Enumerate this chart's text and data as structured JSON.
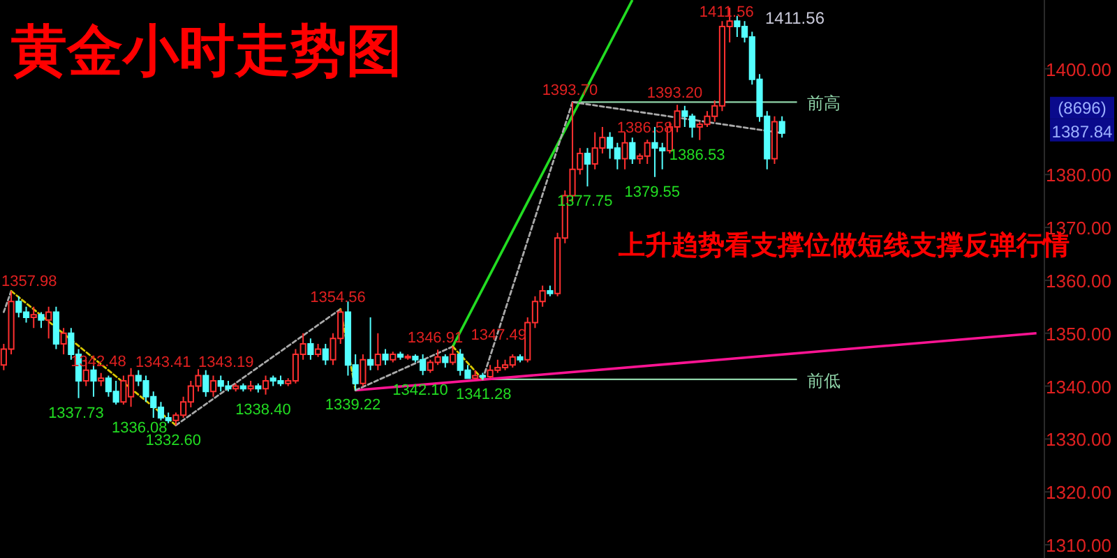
{
  "chart_data": {
    "type": "candlestick",
    "title": "黄金小时走势图",
    "categories": [
      null,
      null,
      null,
      null,
      null,
      null,
      null,
      null,
      null,
      null,
      null,
      null,
      null,
      null,
      null,
      null,
      null,
      null,
      null,
      null,
      null,
      null,
      null,
      null,
      null,
      null,
      null,
      null,
      null,
      null,
      null,
      null,
      null,
      null,
      null,
      null,
      null,
      null,
      null,
      null,
      null,
      null,
      null,
      null,
      null,
      null,
      null,
      null,
      null,
      null,
      null,
      null,
      null,
      null,
      null,
      null,
      null,
      null,
      null,
      null,
      null,
      null,
      null,
      null,
      null,
      null,
      null,
      null,
      null,
      null,
      null,
      null,
      null,
      null,
      null,
      null,
      null,
      null,
      null,
      null,
      null,
      null,
      null,
      null,
      null,
      null,
      null,
      null,
      null,
      null,
      null,
      null,
      null,
      null,
      null,
      null,
      null,
      null,
      null,
      null,
      null,
      null,
      null,
      null,
      null,
      null,
      null,
      null,
      null,
      null,
      null,
      null,
      null,
      null,
      null,
      null,
      null,
      null,
      null,
      null,
      null,
      null,
      null,
      null,
      null,
      null,
      null,
      null,
      null,
      null,
      null,
      null,
      null,
      null,
      null,
      null,
      null,
      null,
      null
    ],
    "ohlc": [
      [
        1344,
        1348,
        1343,
        1347
      ],
      [
        1347,
        1357.98,
        1346,
        1356
      ],
      [
        1356,
        1357,
        1353,
        1354
      ],
      [
        1354,
        1355,
        1352,
        1353
      ],
      [
        1353,
        1355,
        1351,
        1353.5
      ],
      [
        1353.5,
        1354,
        1351,
        1352.5
      ],
      [
        1352.5,
        1355,
        1349,
        1354
      ],
      [
        1354,
        1355,
        1347,
        1348
      ],
      [
        1348,
        1351,
        1346,
        1350
      ],
      [
        1350,
        1351,
        1345,
        1346
      ],
      [
        1346,
        1347,
        1337.73,
        1341
      ],
      [
        1341,
        1345,
        1340,
        1343
      ],
      [
        1343,
        1344,
        1338,
        1341
      ],
      [
        1341,
        1342.48,
        1340,
        1341.5
      ],
      [
        1341.5,
        1342,
        1338,
        1339
      ],
      [
        1339,
        1341,
        1336.5,
        1337
      ],
      [
        1337,
        1342,
        1336.5,
        1341
      ],
      [
        1338,
        1343.41,
        1336.08,
        1342
      ],
      [
        1342,
        1343,
        1340,
        1341
      ],
      [
        1341,
        1342,
        1337,
        1338
      ],
      [
        1338,
        1339,
        1334,
        1336
      ],
      [
        1336,
        1337,
        1333.5,
        1334
      ],
      [
        1334,
        1335,
        1333,
        1333.5
      ],
      [
        1333.5,
        1335,
        1332.6,
        1334.5
      ],
      [
        1334.5,
        1338,
        1334,
        1337
      ],
      [
        1337,
        1341,
        1336,
        1340
      ],
      [
        1340,
        1343.19,
        1339,
        1342
      ],
      [
        1342,
        1343,
        1338,
        1339
      ],
      [
        1339,
        1342,
        1338,
        1341
      ],
      [
        1341,
        1342,
        1339,
        1340
      ],
      [
        1340,
        1341,
        1339,
        1339.5
      ],
      [
        1339.5,
        1340.5,
        1339,
        1340
      ],
      [
        1340,
        1340.5,
        1339,
        1339.5
      ],
      [
        1339.5,
        1341,
        1339,
        1340
      ],
      [
        1340,
        1340.5,
        1338.8,
        1339.5
      ],
      [
        1339.5,
        1342,
        1338.4,
        1341
      ],
      [
        1341.5,
        1342,
        1340,
        1341
      ],
      [
        1341,
        1342,
        1340,
        1340.5
      ],
      [
        1340.5,
        1341.5,
        1340,
        1341
      ],
      [
        1341,
        1347,
        1340.5,
        1346
      ],
      [
        1346,
        1350,
        1345,
        1348
      ],
      [
        1348,
        1349,
        1345,
        1346
      ],
      [
        1346,
        1348,
        1345.5,
        1347
      ],
      [
        1347,
        1348,
        1344,
        1345
      ],
      [
        1345,
        1350,
        1344,
        1349
      ],
      [
        1349,
        1354.56,
        1348,
        1354
      ],
      [
        1354,
        1356,
        1342,
        1344
      ],
      [
        1344,
        1346,
        1339.22,
        1340.5
      ],
      [
        1340.5,
        1346,
        1340,
        1345
      ],
      [
        1345,
        1353,
        1343,
        1344
      ],
      [
        1344,
        1350,
        1343,
        1346
      ],
      [
        1346,
        1347,
        1344,
        1345
      ],
      [
        1345,
        1346.5,
        1344.5,
        1346
      ],
      [
        1346,
        1346.5,
        1345,
        1345.5
      ],
      [
        1345.5,
        1346,
        1345,
        1345.6
      ],
      [
        1345.6,
        1346,
        1344.5,
        1345
      ],
      [
        1345,
        1346,
        1342.1,
        1343
      ],
      [
        1343,
        1345,
        1342.5,
        1344.5
      ],
      [
        1344.5,
        1346.91,
        1344,
        1345.5
      ],
      [
        1345.5,
        1346,
        1343.5,
        1344.5
      ],
      [
        1344.5,
        1347.49,
        1344,
        1346
      ],
      [
        1346,
        1347,
        1342,
        1343
      ],
      [
        1343,
        1344,
        1341.5,
        1341.5
      ],
      [
        1341.5,
        1343,
        1341.3,
        1342
      ],
      [
        1342,
        1342.5,
        1341.28,
        1341.8
      ],
      [
        1341.8,
        1344,
        1341.5,
        1343
      ],
      [
        1343,
        1345,
        1342.5,
        1343.5
      ],
      [
        1343.5,
        1345,
        1343,
        1344
      ],
      [
        1344,
        1346,
        1343.5,
        1345.5
      ],
      [
        1345.5,
        1346,
        1344.5,
        1345
      ],
      [
        1345,
        1353,
        1344.5,
        1352
      ],
      [
        1352,
        1357,
        1351,
        1356
      ],
      [
        1356,
        1359,
        1355,
        1358
      ],
      [
        1358,
        1359,
        1357,
        1357.5
      ],
      [
        1357.5,
        1369,
        1357,
        1368
      ],
      [
        1368,
        1377,
        1367,
        1376
      ],
      [
        1376,
        1393.7,
        1375,
        1381
      ],
      [
        1381,
        1385,
        1380,
        1384
      ],
      [
        1384,
        1385,
        1377.75,
        1382
      ],
      [
        1382,
        1388,
        1381,
        1385
      ],
      [
        1385,
        1389,
        1384,
        1387
      ],
      [
        1387,
        1388,
        1383,
        1385
      ],
      [
        1385,
        1386,
        1381,
        1383
      ],
      [
        1383,
        1388,
        1381,
        1386
      ],
      [
        1386,
        1387,
        1382,
        1383
      ],
      [
        1383,
        1384,
        1382,
        1383.5
      ],
      [
        1383.5,
        1386.58,
        1382,
        1386
      ],
      [
        1386,
        1389,
        1379.55,
        1385
      ],
      [
        1385,
        1386,
        1381,
        1384.5
      ],
      [
        1384.5,
        1390,
        1384,
        1389
      ],
      [
        1389,
        1393.2,
        1388,
        1392
      ],
      [
        1392,
        1393,
        1389,
        1391
      ],
      [
        1391,
        1391.5,
        1387,
        1389
      ],
      [
        1389,
        1390,
        1386.53,
        1389.5
      ],
      [
        1389.5,
        1392,
        1389,
        1391
      ],
      [
        1391,
        1394,
        1390,
        1393
      ],
      [
        1393,
        1409,
        1392,
        1408
      ],
      [
        1408,
        1411.56,
        1405,
        1409
      ],
      [
        1409,
        1410,
        1406,
        1408
      ],
      [
        1408,
        1409,
        1405,
        1406
      ],
      [
        1406,
        1407,
        1397,
        1398
      ],
      [
        1398,
        1399,
        1390,
        1391
      ],
      [
        1391,
        1392,
        1381,
        1383
      ],
      [
        1383,
        1391,
        1382,
        1390
      ],
      [
        1390,
        1391,
        1387,
        1387.84
      ],
      null,
      null,
      null,
      null,
      null,
      null,
      null,
      null,
      null,
      null,
      null,
      null,
      null,
      null,
      null,
      null,
      null,
      null,
      null,
      null,
      null,
      null,
      null,
      null,
      null,
      null,
      null,
      null,
      null,
      null,
      null,
      null,
      null,
      null
    ],
    "series": [
      {
        "type": "line",
        "color": "#ff1493",
        "line_style": "solid",
        "values": [
          null,
          null,
          null,
          null,
          null,
          null,
          null,
          null,
          null,
          null,
          null,
          null,
          null,
          null,
          null,
          null,
          null,
          null,
          null,
          null,
          null,
          null,
          null,
          null,
          null,
          null,
          null,
          null,
          null,
          null,
          null,
          null,
          null,
          null,
          null,
          null,
          null,
          null,
          null,
          null,
          null,
          null,
          null,
          null,
          null,
          null,
          null,
          1339.22,
          null,
          null,
          null,
          null,
          null,
          null,
          null,
          null,
          null,
          null,
          null,
          null,
          null,
          null,
          null,
          null,
          null,
          null,
          null,
          null,
          null,
          null,
          null,
          null,
          null,
          null,
          null,
          null,
          null,
          null,
          null,
          null,
          null,
          null,
          null,
          null,
          null,
          null,
          null,
          null,
          null,
          null,
          null,
          null,
          null,
          null,
          null,
          null,
          null,
          null,
          null,
          null,
          null,
          null,
          null,
          null,
          null,
          null,
          null,
          null,
          null,
          null,
          null,
          null,
          null,
          null,
          null,
          null,
          null,
          null,
          null,
          null,
          null,
          null,
          null,
          null,
          null,
          null,
          null,
          null,
          null,
          null,
          null,
          null,
          null,
          null,
          null,
          null,
          null,
          null,
          1350
        ]
      },
      {
        "type": "line",
        "color": "#22dd22",
        "line_style": "solid",
        "values": [
          null,
          null,
          null,
          null,
          null,
          null,
          null,
          null,
          null,
          null,
          null,
          null,
          null,
          null,
          null,
          null,
          null,
          null,
          null,
          null,
          null,
          null,
          null,
          null,
          null,
          null,
          null,
          null,
          null,
          null,
          null,
          null,
          null,
          null,
          null,
          null,
          null,
          null,
          null,
          null,
          null,
          null,
          null,
          null,
          null,
          null,
          null,
          null,
          null,
          null,
          null,
          null,
          null,
          null,
          null,
          null,
          null,
          null,
          null,
          null,
          1347.49,
          null,
          null,
          null,
          null,
          null,
          null,
          null,
          null,
          null,
          null,
          null,
          null,
          null,
          null,
          null,
          null,
          null,
          null,
          null,
          null,
          null,
          null,
          null,
          1413,
          null,
          null,
          null,
          null,
          null,
          null,
          null,
          null,
          null,
          null,
          null,
          null,
          null,
          null,
          null,
          null,
          null,
          null,
          null,
          null,
          null,
          null,
          null,
          null,
          null,
          null,
          null,
          null,
          null,
          null,
          null,
          null,
          null,
          null,
          null,
          null,
          null,
          null,
          null,
          null,
          null,
          null,
          null,
          null,
          null,
          null,
          null,
          null,
          null,
          null,
          null,
          null,
          null,
          null
        ]
      },
      {
        "type": "line",
        "color": "#aaaaaa",
        "line_style": "dashed",
        "values": [
          1354,
          1357.98,
          null,
          null,
          null,
          null,
          null,
          null,
          null,
          null,
          null,
          null,
          null,
          null,
          null,
          null,
          null,
          null,
          null,
          null,
          null,
          null,
          null,
          null,
          null,
          null,
          null,
          null,
          null,
          null,
          null,
          null,
          null,
          null,
          null,
          null,
          null,
          null,
          null,
          null,
          null,
          null,
          null,
          null,
          null,
          null,
          null,
          null,
          null,
          null,
          null,
          null,
          null,
          null,
          null,
          null,
          null,
          null,
          null,
          null,
          null,
          null,
          null,
          null,
          null,
          null,
          null,
          null,
          null,
          null,
          null,
          null,
          null,
          null,
          null,
          null,
          null,
          null,
          null,
          null,
          null,
          null,
          null,
          null,
          null,
          null,
          null,
          null,
          null,
          null,
          null,
          null,
          null,
          null,
          null,
          null,
          null,
          null,
          null,
          null,
          null,
          null,
          null,
          null,
          null,
          null,
          null,
          null,
          null,
          null,
          null,
          null,
          null,
          null,
          null,
          null,
          null,
          null,
          null,
          null,
          null,
          null,
          null,
          null,
          null,
          null,
          null,
          null,
          null,
          null,
          null,
          null,
          null,
          null,
          null,
          null,
          null,
          null,
          null
        ]
      },
      {
        "type": "line",
        "color": "#d8c800",
        "line_style": "dashed",
        "values": [
          null,
          1357.98,
          null,
          null,
          null,
          null,
          null,
          null,
          null,
          null,
          null,
          null,
          null,
          null,
          null,
          null,
          null,
          null,
          null,
          null,
          null,
          null,
          null,
          1332.6,
          null,
          null,
          null,
          null,
          null,
          null,
          null,
          null,
          null,
          null,
          null,
          null,
          null,
          null,
          null,
          null,
          null,
          null,
          null,
          null,
          null,
          null,
          null,
          null,
          null,
          null,
          null,
          null,
          null,
          null,
          null,
          null,
          null,
          null,
          null,
          null,
          null,
          null,
          null,
          null,
          null,
          null,
          null,
          null,
          null,
          null,
          null,
          null,
          null,
          null,
          null,
          null,
          null,
          null,
          null,
          null,
          null,
          null,
          null,
          null,
          null,
          null,
          null,
          null,
          null,
          null,
          null,
          null,
          null,
          null,
          null,
          null,
          null,
          null,
          null,
          null,
          null,
          null,
          null,
          null,
          null,
          null,
          null,
          null,
          null,
          null,
          null,
          null,
          null,
          null,
          null,
          null,
          null,
          null,
          null,
          null,
          null,
          null,
          null,
          null,
          null,
          null,
          null,
          null,
          null,
          null,
          null,
          null,
          null,
          null,
          null,
          null,
          null,
          null,
          null
        ]
      },
      {
        "type": "line",
        "color": "#aaaaaa",
        "line_style": "dashed",
        "values": [
          null,
          null,
          null,
          null,
          null,
          null,
          null,
          null,
          null,
          null,
          null,
          null,
          null,
          null,
          null,
          null,
          null,
          null,
          null,
          null,
          null,
          null,
          null,
          1332.6,
          null,
          null,
          null,
          null,
          null,
          null,
          null,
          null,
          null,
          null,
          null,
          null,
          null,
          null,
          null,
          null,
          null,
          null,
          null,
          null,
          null,
          1354.56,
          null,
          null,
          null,
          null,
          null,
          null,
          null,
          null,
          null,
          null,
          null,
          null,
          null,
          null,
          null,
          null,
          null,
          null,
          null,
          null,
          null,
          null,
          null,
          null,
          null,
          null,
          null,
          null,
          null,
          null,
          null,
          null,
          null,
          null,
          null,
          null,
          null,
          null,
          null,
          null,
          null,
          null,
          null,
          null,
          null,
          null,
          null,
          null,
          null,
          null,
          null,
          null,
          null,
          null,
          null,
          null,
          null,
          null,
          null,
          null,
          null,
          null,
          null,
          null,
          null,
          null,
          null,
          null,
          null,
          null,
          null,
          null,
          null,
          null,
          null,
          null,
          null,
          null,
          null,
          null,
          null,
          null,
          null,
          null,
          null,
          null,
          null,
          null,
          null,
          null,
          null,
          null,
          null
        ]
      },
      {
        "type": "line",
        "color": "#d8c800",
        "line_style": "dashed",
        "values": [
          null,
          null,
          null,
          null,
          null,
          null,
          null,
          null,
          null,
          null,
          null,
          null,
          null,
          null,
          null,
          null,
          null,
          null,
          null,
          null,
          null,
          null,
          null,
          null,
          null,
          null,
          null,
          null,
          null,
          null,
          null,
          null,
          null,
          null,
          null,
          null,
          null,
          null,
          null,
          null,
          null,
          null,
          null,
          null,
          null,
          1354.56,
          null,
          1339.22,
          null,
          null,
          null,
          null,
          null,
          null,
          null,
          null,
          null,
          null,
          null,
          null,
          null,
          null,
          null,
          null,
          null,
          null,
          null,
          null,
          null,
          null,
          null,
          null,
          null,
          null,
          null,
          null,
          null,
          null,
          null,
          null,
          null,
          null,
          null,
          null,
          null,
          null,
          null,
          null,
          null,
          null,
          null,
          null,
          null,
          null,
          null,
          null,
          null,
          null,
          null,
          null,
          null,
          null,
          null,
          null,
          null,
          null,
          null,
          null,
          null,
          null,
          null,
          null,
          null,
          null,
          null,
          null,
          null,
          null,
          null,
          null,
          null,
          null,
          null,
          null,
          null,
          null,
          null,
          null,
          null,
          null,
          null,
          null,
          null,
          null,
          null,
          null,
          null,
          null,
          null
        ]
      },
      {
        "type": "line",
        "color": "#aaaaaa",
        "line_style": "dashed",
        "values": [
          null,
          null,
          null,
          null,
          null,
          null,
          null,
          null,
          null,
          null,
          null,
          null,
          null,
          null,
          null,
          null,
          null,
          null,
          null,
          null,
          null,
          null,
          null,
          null,
          null,
          null,
          null,
          null,
          null,
          null,
          null,
          null,
          null,
          null,
          null,
          null,
          null,
          null,
          null,
          null,
          null,
          null,
          null,
          null,
          null,
          null,
          null,
          1339.22,
          null,
          null,
          null,
          null,
          null,
          null,
          null,
          null,
          null,
          null,
          null,
          null,
          1347.49,
          null,
          null,
          null,
          null,
          null,
          null,
          null,
          null,
          null,
          null,
          null,
          null,
          null,
          null,
          null,
          null,
          null,
          null,
          null,
          null,
          null,
          null,
          null,
          null,
          null,
          null,
          null,
          null,
          null,
          null,
          null,
          null,
          null,
          null,
          null,
          null,
          null,
          null,
          null,
          null,
          null,
          null,
          null,
          null,
          null,
          null,
          null,
          null,
          null,
          null,
          null,
          null,
          null,
          null,
          null,
          null,
          null,
          null,
          null,
          null,
          null,
          null,
          null,
          null,
          null,
          null,
          null,
          null,
          null,
          null,
          null,
          null,
          null,
          null,
          null,
          null,
          null,
          null
        ]
      },
      {
        "type": "line",
        "color": "#d8c800",
        "line_style": "dashed",
        "values": [
          null,
          null,
          null,
          null,
          null,
          null,
          null,
          null,
          null,
          null,
          null,
          null,
          null,
          null,
          null,
          null,
          null,
          null,
          null,
          null,
          null,
          null,
          null,
          null,
          null,
          null,
          null,
          null,
          null,
          null,
          null,
          null,
          null,
          null,
          null,
          null,
          null,
          null,
          null,
          null,
          null,
          null,
          null,
          null,
          null,
          null,
          null,
          null,
          null,
          null,
          null,
          null,
          null,
          null,
          null,
          null,
          null,
          null,
          null,
          null,
          1347.49,
          null,
          null,
          null,
          1341.28,
          null,
          null,
          null,
          null,
          null,
          null,
          null,
          null,
          null,
          null,
          null,
          null,
          null,
          null,
          null,
          null,
          null,
          null,
          null,
          null,
          null,
          null,
          null,
          null,
          null,
          null,
          null,
          null,
          null,
          null,
          null,
          null,
          null,
          null,
          null,
          null,
          null,
          null,
          null,
          null,
          null,
          null,
          null,
          null,
          null,
          null,
          null,
          null,
          null,
          null,
          null,
          null,
          null,
          null,
          null,
          null,
          null,
          null,
          null,
          null,
          null,
          null,
          null,
          null,
          null,
          null,
          null,
          null,
          null,
          null,
          null,
          null,
          null,
          null
        ]
      },
      {
        "type": "line",
        "color": "#aaaaaa",
        "line_style": "dashed",
        "values": [
          null,
          null,
          null,
          null,
          null,
          null,
          null,
          null,
          null,
          null,
          null,
          null,
          null,
          null,
          null,
          null,
          null,
          null,
          null,
          null,
          null,
          null,
          null,
          null,
          null,
          null,
          null,
          null,
          null,
          null,
          null,
          null,
          null,
          null,
          null,
          null,
          null,
          null,
          null,
          null,
          null,
          null,
          null,
          null,
          null,
          null,
          null,
          null,
          null,
          null,
          null,
          null,
          null,
          null,
          null,
          null,
          null,
          null,
          null,
          null,
          null,
          null,
          null,
          null,
          1341.28,
          null,
          null,
          null,
          null,
          null,
          null,
          null,
          null,
          null,
          null,
          null,
          1393.7,
          null,
          null,
          null,
          null,
          null,
          null,
          null,
          null,
          null,
          null,
          null,
          null,
          null,
          null,
          null,
          null,
          null,
          null,
          null,
          null,
          null,
          null,
          null,
          null,
          null,
          null,
          null,
          null,
          null,
          null,
          null,
          null,
          null,
          null,
          null,
          null,
          null,
          null,
          null,
          null,
          null,
          null,
          null,
          null,
          null,
          null,
          null,
          null,
          null,
          null,
          null,
          null,
          null,
          null,
          null,
          null,
          null,
          null,
          null,
          null,
          null,
          null
        ]
      },
      {
        "type": "line",
        "color": "#aaaaaa",
        "line_style": "dashed",
        "values": [
          null,
          null,
          null,
          null,
          null,
          null,
          null,
          null,
          null,
          null,
          null,
          null,
          null,
          null,
          null,
          null,
          null,
          null,
          null,
          null,
          null,
          null,
          null,
          null,
          null,
          null,
          null,
          null,
          null,
          null,
          null,
          null,
          null,
          null,
          null,
          null,
          null,
          null,
          null,
          null,
          null,
          null,
          null,
          null,
          null,
          null,
          null,
          null,
          null,
          null,
          null,
          null,
          null,
          null,
          null,
          null,
          null,
          null,
          null,
          null,
          null,
          null,
          null,
          null,
          null,
          null,
          null,
          null,
          null,
          null,
          null,
          null,
          null,
          null,
          null,
          null,
          1393.7,
          null,
          null,
          null,
          null,
          null,
          null,
          null,
          null,
          null,
          null,
          null,
          null,
          null,
          null,
          null,
          null,
          null,
          null,
          null,
          null,
          null,
          null,
          null,
          null,
          null,
          null,
          null,
          1387.84,
          null,
          null,
          null,
          null,
          null,
          null,
          null,
          null,
          null,
          null,
          null,
          null,
          null,
          null,
          null,
          null,
          null,
          null,
          null,
          null,
          null,
          null,
          null,
          null,
          null,
          null,
          null,
          null,
          null,
          null,
          null,
          null,
          null,
          null
        ]
      }
    ],
    "ref_lines": [
      {
        "axis": "y",
        "value": 1393.7,
        "label": "前高",
        "color": "#8fd3a8"
      },
      {
        "axis": "y",
        "value": 1341.28,
        "label": "前低",
        "color": "#8fd3a8"
      }
    ],
    "annotations": [
      "1357.98",
      {
        "text": "1337.73",
        "y": 1337.73
      },
      {
        "text": "1342.48",
        "y": 1342.48
      },
      "1343.41",
      "1336.08",
      {
        "text": "1332.60",
        "y": 1332.6
      },
      "1343.19",
      {
        "text": "1338.40",
        "y": 1338.4
      },
      {
        "text": "1354.56",
        "y": 1354.56
      },
      {
        "text": "1339.22",
        "y": 1339.22
      },
      {
        "text": "1342.10",
        "y": 1342.1
      },
      {
        "text": "1346.91",
        "y": 1346.91
      },
      {
        "text": "1347.49",
        "y": 1347.49
      },
      {
        "text": "1341.28",
        "y": 1341.28
      },
      {
        "text": "1393.70",
        "y": 1393.7
      },
      {
        "text": "1377.75",
        "y": 1377.75
      },
      {
        "text": "1379.55",
        "y": 1379.55
      },
      {
        "text": "1386.58",
        "y": 1386.58
      },
      {
        "text": "1393.20",
        "y": 1393.2
      },
      {
        "text": "1386.53",
        "y": 1386.53
      },
      {
        "text": "1411.56",
        "y": 1411.56
      },
      "1411.56",
      "1387.84",
      "上升趋势看支撑位做短线支撑反弹行情",
      "(8696)"
    ],
    "ylim": [
      1307.5,
      1413
    ],
    "yticks": [
      {
        "value": 1310,
        "label": "1310.00"
      },
      {
        "value": 1320,
        "label": "1320.00"
      },
      {
        "value": 1330,
        "label": "1330.00"
      },
      {
        "value": 1340,
        "label": "1340.00"
      },
      {
        "value": 1350,
        "label": "1350.00"
      },
      {
        "value": 1360,
        "label": "1360.00"
      },
      {
        "value": 1370,
        "label": "1370.00"
      },
      {
        "value": 1380,
        "label": "1380.00"
      },
      {
        "value": 1400,
        "label": "1400.00"
      }
    ],
    "tick_labels": "y",
    "grid": false,
    "marker": "none"
  }
}
